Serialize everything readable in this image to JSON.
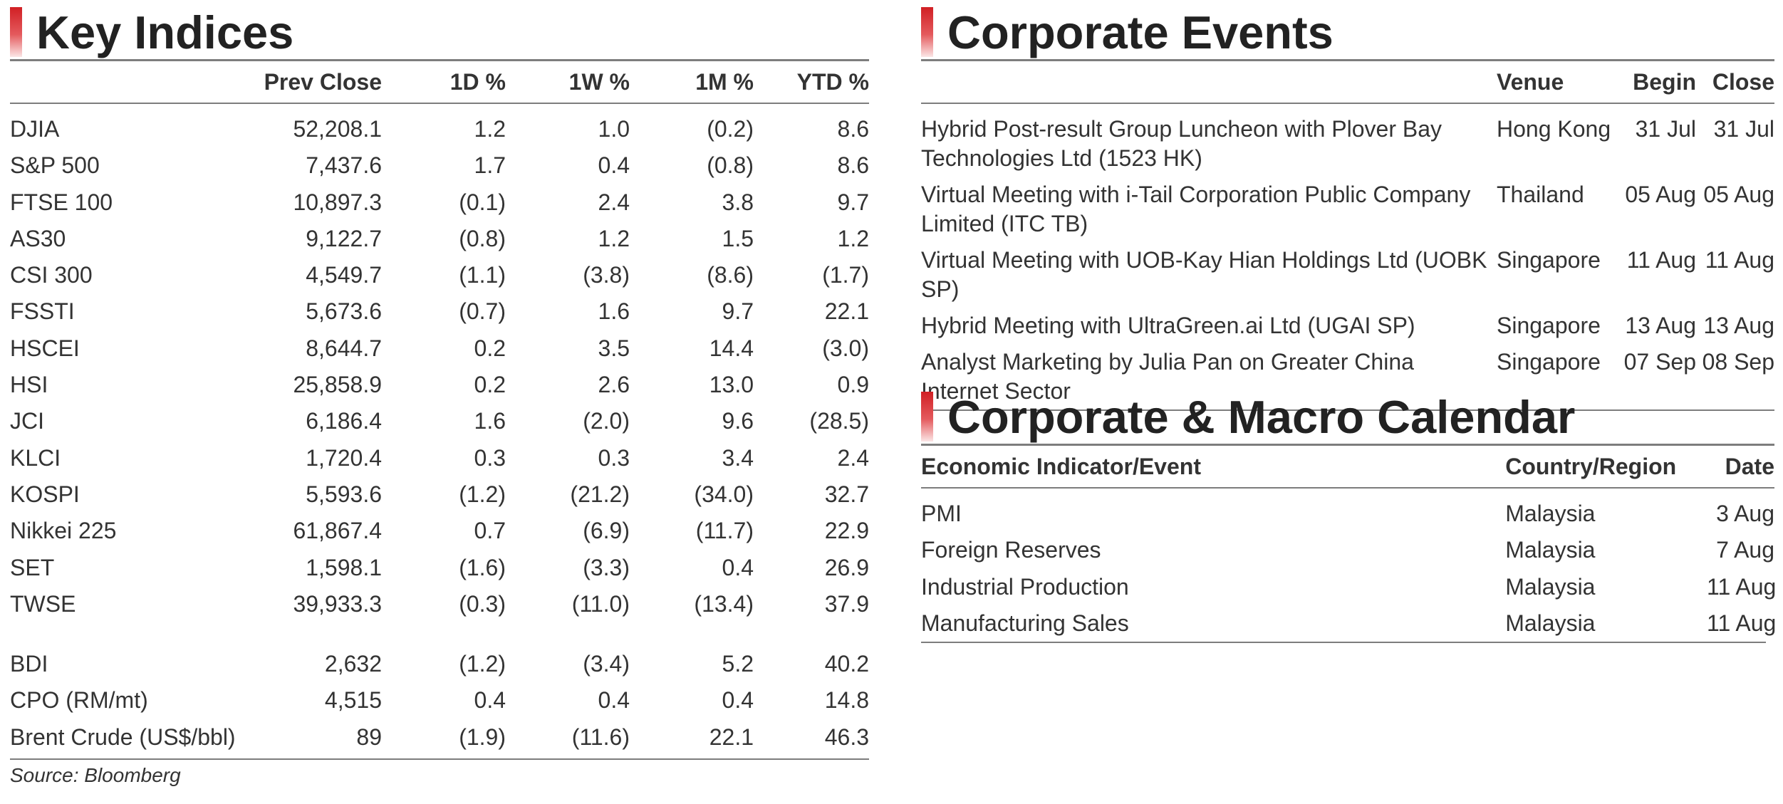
{
  "key_indices": {
    "title": "Key Indices",
    "headers": [
      "Prev Close",
      "1D %",
      "1W %",
      "1M %",
      "YTD %"
    ],
    "rows": [
      {
        "name": "DJIA",
        "prev": "52,208.1",
        "d1": "1.2",
        "w1": "1.0",
        "m1": "(0.2)",
        "ytd": "8.6"
      },
      {
        "name": "S&P 500",
        "prev": "7,437.6",
        "d1": "1.7",
        "w1": "0.4",
        "m1": "(0.8)",
        "ytd": "8.6"
      },
      {
        "name": "FTSE 100",
        "prev": "10,897.3",
        "d1": "(0.1)",
        "w1": "2.4",
        "m1": "3.8",
        "ytd": "9.7"
      },
      {
        "name": "AS30",
        "prev": "9,122.7",
        "d1": "(0.8)",
        "w1": "1.2",
        "m1": "1.5",
        "ytd": "1.2"
      },
      {
        "name": "CSI 300",
        "prev": "4,549.7",
        "d1": "(1.1)",
        "w1": "(3.8)",
        "m1": "(8.6)",
        "ytd": "(1.7)"
      },
      {
        "name": "FSSTI",
        "prev": "5,673.6",
        "d1": "(0.7)",
        "w1": "1.6",
        "m1": "9.7",
        "ytd": "22.1"
      },
      {
        "name": "HSCEI",
        "prev": "8,644.7",
        "d1": "0.2",
        "w1": "3.5",
        "m1": "14.4",
        "ytd": "(3.0)"
      },
      {
        "name": "HSI",
        "prev": "25,858.9",
        "d1": "0.2",
        "w1": "2.6",
        "m1": "13.0",
        "ytd": "0.9"
      },
      {
        "name": "JCI",
        "prev": "6,186.4",
        "d1": "1.6",
        "w1": "(2.0)",
        "m1": "9.6",
        "ytd": "(28.5)"
      },
      {
        "name": "KLCI",
        "prev": "1,720.4",
        "d1": "0.3",
        "w1": "0.3",
        "m1": "3.4",
        "ytd": "2.4"
      },
      {
        "name": "KOSPI",
        "prev": "5,593.6",
        "d1": "(1.2)",
        "w1": "(21.2)",
        "m1": "(34.0)",
        "ytd": "32.7"
      },
      {
        "name": "Nikkei 225",
        "prev": "61,867.4",
        "d1": "0.7",
        "w1": "(6.9)",
        "m1": "(11.7)",
        "ytd": "22.9"
      },
      {
        "name": "SET",
        "prev": "1,598.1",
        "d1": "(1.6)",
        "w1": "(3.3)",
        "m1": "0.4",
        "ytd": "26.9"
      },
      {
        "name": "TWSE",
        "prev": "39,933.3",
        "d1": "(0.3)",
        "w1": "(11.0)",
        "m1": "(13.4)",
        "ytd": "37.9"
      }
    ],
    "commodities": [
      {
        "name": "BDI",
        "prev": "2,632",
        "d1": "(1.2)",
        "w1": "(3.4)",
        "m1": "5.2",
        "ytd": "40.2"
      },
      {
        "name": "CPO (RM/mt)",
        "prev": "4,515",
        "d1": "0.4",
        "w1": "0.4",
        "m1": "0.4",
        "ytd": "14.8"
      },
      {
        "name": "Brent Crude (US$/bbl)",
        "prev": "89",
        "d1": "(1.9)",
        "w1": "(11.6)",
        "m1": "22.1",
        "ytd": "46.3"
      }
    ],
    "source": "Source: Bloomberg"
  },
  "corporate_events": {
    "title": "Corporate Events",
    "headers": [
      "Venue",
      "Begin",
      "Close"
    ],
    "rows": [
      {
        "event": "Hybrid Post-result Group Luncheon with Plover Bay Technologies Ltd (1523 HK)",
        "venue": "Hong Kong",
        "begin": "31 Jul",
        "close": "31 Jul"
      },
      {
        "event": "Virtual Meeting with i-Tail Corporation Public Company Limited (ITC TB)",
        "venue": "Thailand",
        "begin": "05 Aug",
        "close": "05 Aug"
      },
      {
        "event": "Virtual Meeting with UOB-Kay Hian Holdings Ltd (UOBK SP)",
        "venue": "Singapore",
        "begin": "11 Aug",
        "close": "11 Aug"
      },
      {
        "event": "Hybrid Meeting with UltraGreen.ai Ltd (UGAI SP)",
        "venue": "Singapore",
        "begin": "13 Aug",
        "close": "13 Aug"
      },
      {
        "event": "Analyst Marketing by Julia Pan on Greater China Internet Sector",
        "venue": "Singapore",
        "begin": "07 Sep",
        "close": "08 Sep"
      }
    ]
  },
  "calendar": {
    "title": "Corporate & Macro Calendar",
    "headers": [
      "Economic Indicator/Event",
      "Country/Region",
      "Date"
    ],
    "rows": [
      {
        "event": "PMI",
        "country": "Malaysia",
        "date": "3 Aug"
      },
      {
        "event": "Foreign Reserves",
        "country": "Malaysia",
        "date": "7 Aug"
      },
      {
        "event": "Industrial Production",
        "country": "Malaysia",
        "date": "11 Aug"
      },
      {
        "event": "Manufacturing Sales",
        "country": "Malaysia",
        "date": "11 Aug"
      }
    ]
  },
  "colors": {
    "accent": "#d11f24",
    "rule": "#7d7d7d",
    "text": "#333333"
  }
}
